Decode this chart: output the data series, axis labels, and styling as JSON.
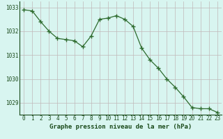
{
  "hours": [
    0,
    1,
    2,
    3,
    4,
    5,
    6,
    7,
    8,
    9,
    10,
    11,
    12,
    13,
    14,
    15,
    16,
    17,
    18,
    19,
    20,
    21,
    22,
    23
  ],
  "pressure": [
    1032.9,
    1032.85,
    1032.4,
    1032.0,
    1031.7,
    1031.65,
    1031.6,
    1031.35,
    1031.8,
    1032.5,
    1032.55,
    1032.65,
    1032.5,
    1032.2,
    1031.3,
    1030.8,
    1030.45,
    1030.0,
    1029.65,
    1029.25,
    1028.8,
    1028.75,
    1028.75,
    1028.6
  ],
  "line_color": "#2d6a2d",
  "marker": "+",
  "marker_size": 4.0,
  "bg_color": "#d8f5f0",
  "grid_color": "#c0b8b8",
  "xlabel": "Graphe pression niveau de la mer (hPa)",
  "xlabel_color": "#1a4a1a",
  "xlabel_fontsize": 6.5,
  "tick_color": "#1a4a1a",
  "tick_fontsize": 5.5,
  "ylim": [
    1028.5,
    1033.25
  ],
  "yticks": [
    1029,
    1030,
    1031,
    1032,
    1033
  ],
  "xticks": [
    0,
    1,
    2,
    3,
    4,
    5,
    6,
    7,
    8,
    9,
    10,
    11,
    12,
    13,
    14,
    15,
    16,
    17,
    18,
    19,
    20,
    21,
    22,
    23
  ]
}
